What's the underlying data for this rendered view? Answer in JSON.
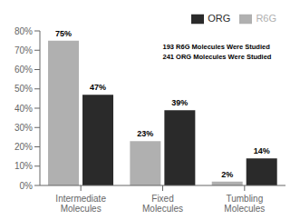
{
  "chart_data": {
    "type": "bar",
    "categories": [
      "Intermediate\nMolecules",
      "Fixed\nMolecules",
      "Tumbling\nMolecules"
    ],
    "series": [
      {
        "name": "R6G",
        "color": "#b0b0b0",
        "values": [
          75,
          23,
          2
        ],
        "value_labels": [
          "75%",
          "23%",
          "2%"
        ]
      },
      {
        "name": "ORG",
        "color": "#2a2a2a",
        "values": [
          47,
          39,
          14
        ],
        "value_labels": [
          "47%",
          "39%",
          "14%"
        ]
      }
    ],
    "ylim": [
      0,
      80
    ],
    "yticks": [
      {
        "value": 0,
        "label": "0%"
      },
      {
        "value": 10,
        "label": "10%"
      },
      {
        "value": 20,
        "label": "20%"
      },
      {
        "value": 30,
        "label": "30%"
      },
      {
        "value": 40,
        "label": "40%"
      },
      {
        "value": 50,
        "label": "50%"
      },
      {
        "value": 60,
        "label": "60%"
      },
      {
        "value": 70,
        "label": "70%"
      },
      {
        "value": 80,
        "label": "80%"
      }
    ],
    "data_labels": true,
    "legend": "upper right",
    "grid": false,
    "annotations": [
      "193 R6G Molecules Were Studied",
      "241 ORG Molecules Were Studied"
    ]
  }
}
